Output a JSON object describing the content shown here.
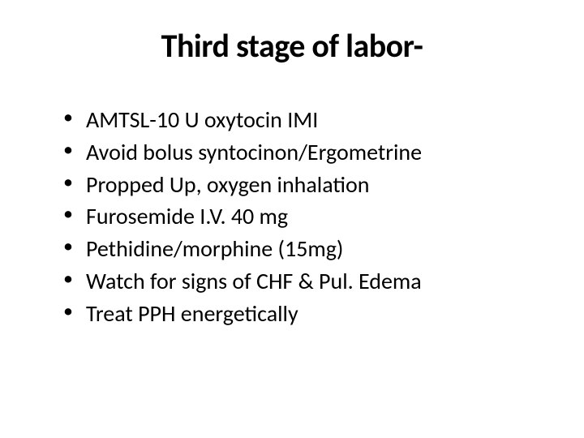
{
  "slide": {
    "title": "Third stage of labor-",
    "bullets": [
      "AMTSL-10 U oxytocin IMI",
      "Avoid bolus syntocinon/Ergometrine",
      "Propped Up, oxygen inhalation",
      "Furosemide I.V. 40 mg",
      "Pethidine/morphine (15mg)",
      "Watch for signs of CHF & Pul. Edema",
      "Treat PPH energetically"
    ],
    "styling": {
      "background_color": "#ffffff",
      "text_color": "#000000",
      "title_fontsize": 40,
      "title_fontweight": 700,
      "bullet_fontsize": 28,
      "font_family": "Calibri",
      "slide_width": 720,
      "slide_height": 540
    }
  }
}
